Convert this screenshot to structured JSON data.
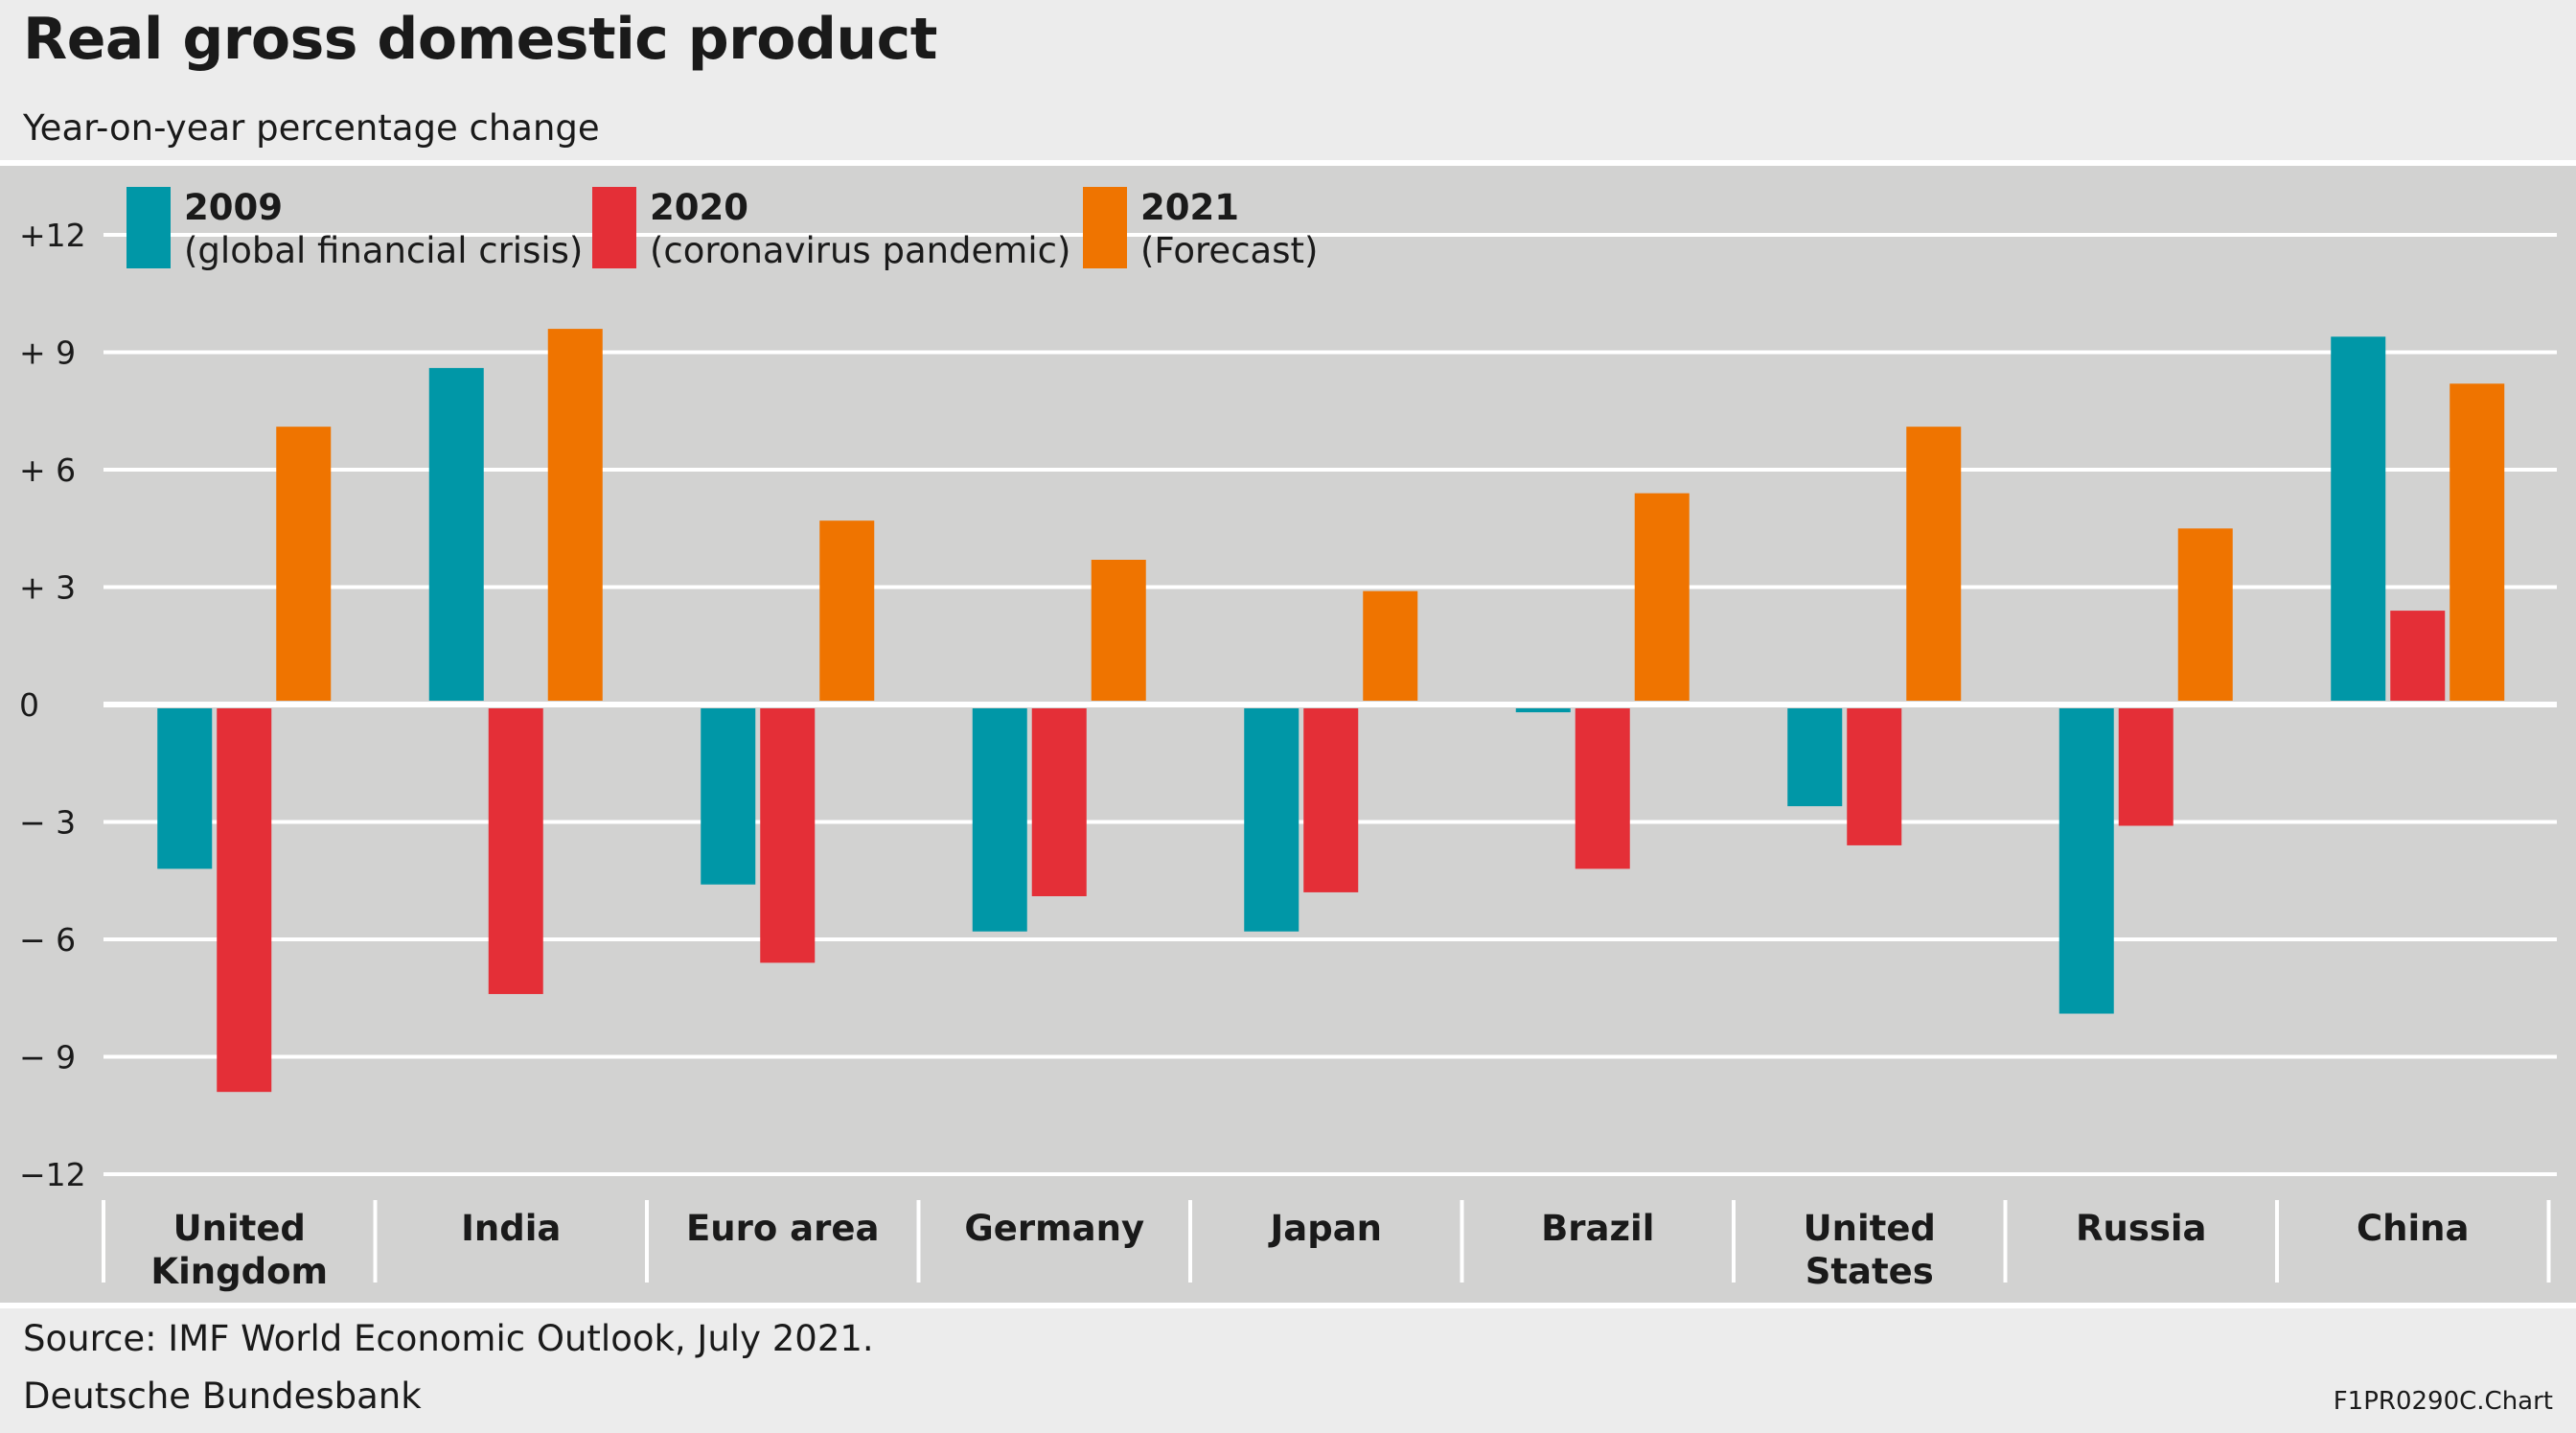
{
  "header": {
    "title": "Real gross domestic product",
    "subtitle": "Year-on-year percentage change"
  },
  "footer": {
    "source": "Source: IMF World Economic Outlook, July 2021.",
    "publisher": "Deutsche Bundesbank",
    "code": "F1PR0290C.Chart"
  },
  "colors": {
    "background": "#ececec",
    "plot_background": "#d2d2d1",
    "grid": "#ffffff",
    "s2009": "#0097a7",
    "s2020": "#e42f37",
    "s2021": "#ef7400"
  },
  "chart_data": {
    "type": "bar",
    "title": "Real gross domestic product",
    "subtitle": "Year-on-year percentage change",
    "ylim": [
      -12,
      12
    ],
    "yticks": [
      12,
      9,
      6,
      3,
      0,
      -3,
      -6,
      -9,
      -12
    ],
    "ytick_labels": [
      "+12",
      "+ 9",
      "+ 6",
      "+ 3",
      "0",
      "− 3",
      "− 6",
      "− 9",
      "−12"
    ],
    "grid": true,
    "legend_position": "top-left",
    "categories": [
      [
        "United",
        "Kingdom"
      ],
      [
        "India"
      ],
      [
        "Euro area"
      ],
      [
        "Germany"
      ],
      [
        "Japan"
      ],
      [
        "Brazil"
      ],
      [
        "United",
        "States"
      ],
      [
        "Russia"
      ],
      [
        "China"
      ]
    ],
    "series": [
      {
        "name": "2009",
        "description": "(global financial crisis)",
        "color": "#0097a7",
        "values": [
          -4.1,
          8.5,
          -4.5,
          -5.7,
          -5.7,
          -0.1,
          -2.5,
          -7.8,
          9.3
        ]
      },
      {
        "name": "2020",
        "description": "(coronavirus pandemic)",
        "color": "#e42f37",
        "values": [
          -9.8,
          -7.3,
          -6.5,
          -4.8,
          -4.7,
          -4.1,
          -3.5,
          -3.0,
          2.3
        ]
      },
      {
        "name": "2021",
        "description": "(Forecast)",
        "color": "#ef7400",
        "values": [
          7.0,
          9.5,
          4.6,
          3.6,
          2.8,
          5.3,
          7.0,
          4.4,
          8.1
        ]
      }
    ]
  }
}
